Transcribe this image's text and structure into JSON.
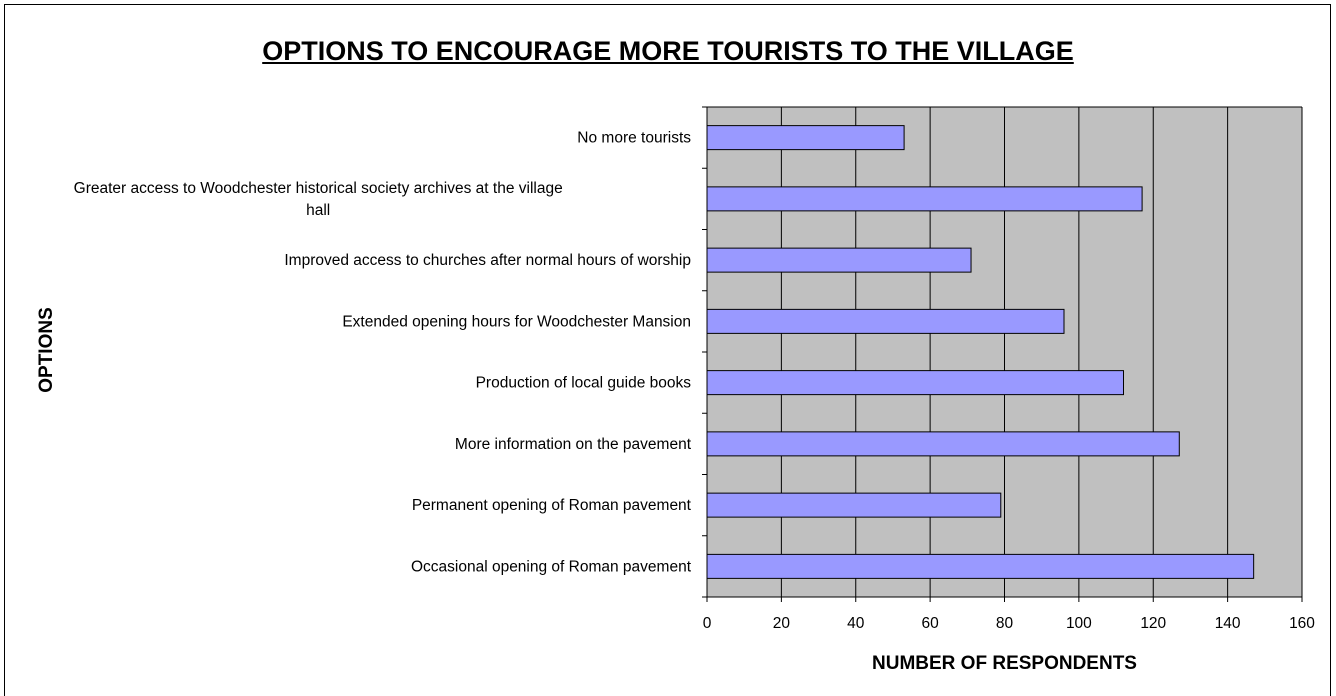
{
  "chart_data": {
    "type": "bar",
    "orientation": "horizontal",
    "title": "OPTIONS TO ENCOURAGE MORE TOURISTS TO THE VILLAGE",
    "xlabel": "NUMBER OF RESPONDENTS",
    "ylabel": "OPTIONS",
    "categories": [
      [
        "No more tourists"
      ],
      [
        "Greater access to Woodchester historical society archives at the village",
        "hall"
      ],
      [
        "Improved access to churches after normal hours of worship"
      ],
      [
        "Extended opening hours for Woodchester Mansion"
      ],
      [
        "Production of local guide books"
      ],
      [
        "More information on the pavement"
      ],
      [
        "Permanent opening of Roman pavement"
      ],
      [
        "Occasional opening of Roman pavement"
      ]
    ],
    "values": [
      53,
      117,
      71,
      96,
      112,
      127,
      79,
      147
    ],
    "xlim": [
      0,
      160
    ],
    "xticks": [
      "0",
      "20",
      "40",
      "60",
      "80",
      "100",
      "120",
      "140",
      "160"
    ],
    "grid": true,
    "legend": "none",
    "colors": {
      "bar_fill": "#9999ff",
      "bar_stroke": "#000000",
      "plot_background": "#c0c0c0",
      "gridline": "#000000"
    }
  }
}
